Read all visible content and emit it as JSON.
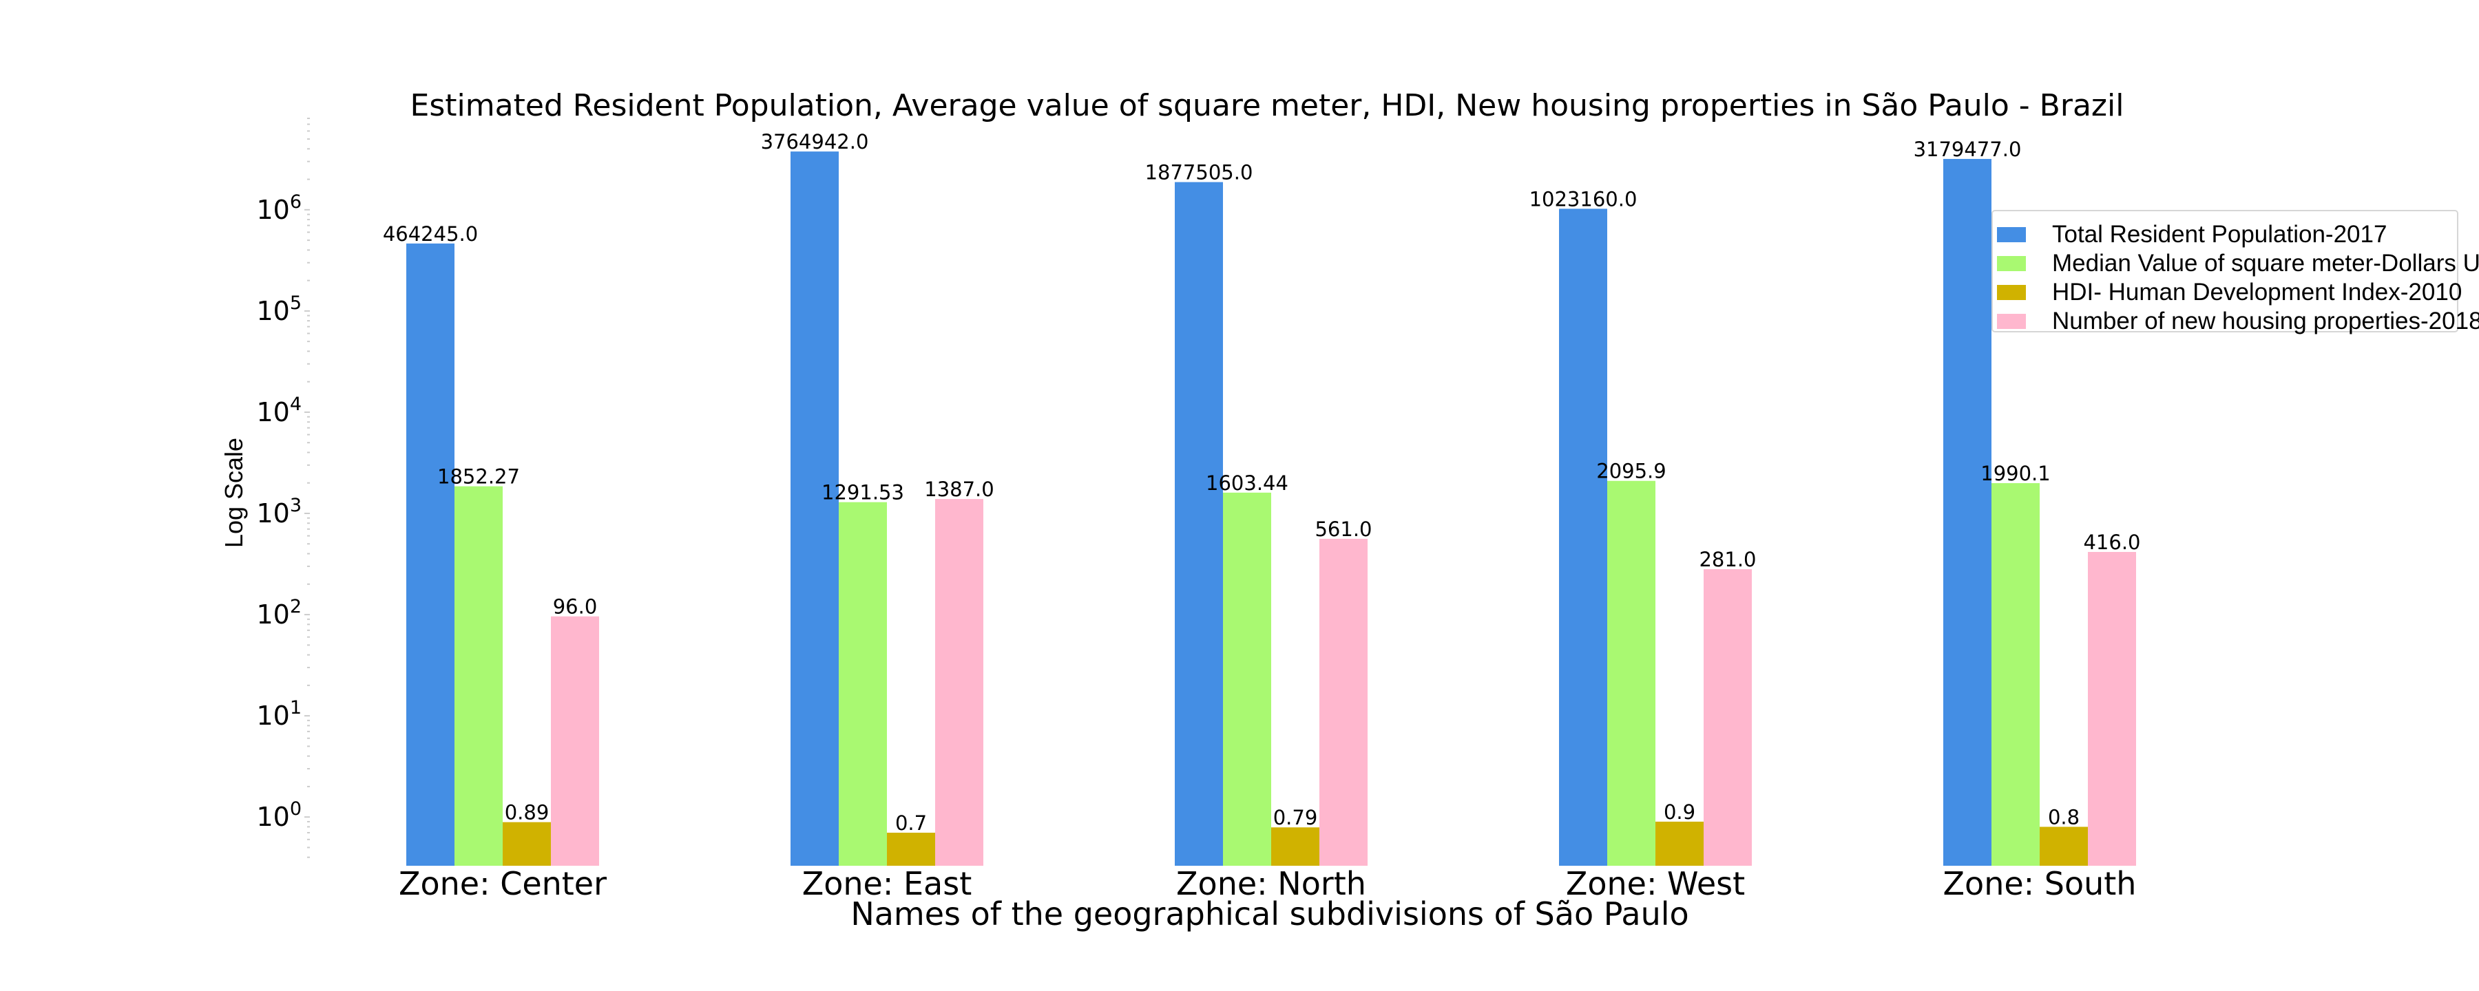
{
  "chart_data": {
    "type": "bar",
    "title": "Estimated Resident Population, Average value of square meter, HDI, New housing properties in São Paulo - Brazil",
    "xlabel": "Names of the geographical subdivisions of São Paulo",
    "ylabel": "Log Scale",
    "yscale": "log",
    "ylim": [
      0.33,
      8000000
    ],
    "yticks": [
      {
        "value": 1,
        "label": "10",
        "exp": "0"
      },
      {
        "value": 10,
        "label": "10",
        "exp": "1"
      },
      {
        "value": 100,
        "label": "10",
        "exp": "2"
      },
      {
        "value": 1000,
        "label": "10",
        "exp": "3"
      },
      {
        "value": 10000,
        "label": "10",
        "exp": "4"
      },
      {
        "value": 100000,
        "label": "10",
        "exp": "5"
      },
      {
        "value": 1000000,
        "label": "10",
        "exp": "6"
      }
    ],
    "grid": false,
    "legend_position": "right",
    "categories": [
      "Zone: Center",
      "Zone: East",
      "Zone: North",
      "Zone: West",
      "Zone: South"
    ],
    "series": [
      {
        "name": "Total Resident Population-2017",
        "color": "#448ee4",
        "values": [
          464245.0,
          3764942.0,
          1877505.0,
          1023160.0,
          3179477.0
        ],
        "labels": [
          "464245.0",
          "3764942.0",
          "1877505.0",
          "1023160.0",
          "3179477.0"
        ]
      },
      {
        "name": "Median Value of square meter-Dollars US",
        "color": "#a9f971",
        "values": [
          1852.27,
          1291.53,
          1603.44,
          2095.9,
          1990.1
        ],
        "labels": [
          "1852.27",
          "1291.53",
          "1603.44",
          "2095.9",
          "1990.1"
        ]
      },
      {
        "name": "HDI- Human Development Index-2010",
        "color": "#d0b200",
        "values": [
          0.89,
          0.7,
          0.79,
          0.9,
          0.8
        ],
        "labels": [
          "0.89",
          "0.7",
          "0.79",
          "0.9",
          "0.8"
        ]
      },
      {
        "name": "Number of new housing properties-2018",
        "color": "#ffb7ce",
        "values": [
          96.0,
          1387.0,
          561.0,
          281.0,
          416.0
        ],
        "labels": [
          "96.0",
          "1387.0",
          "561.0",
          "281.0",
          "416.0"
        ]
      }
    ]
  }
}
